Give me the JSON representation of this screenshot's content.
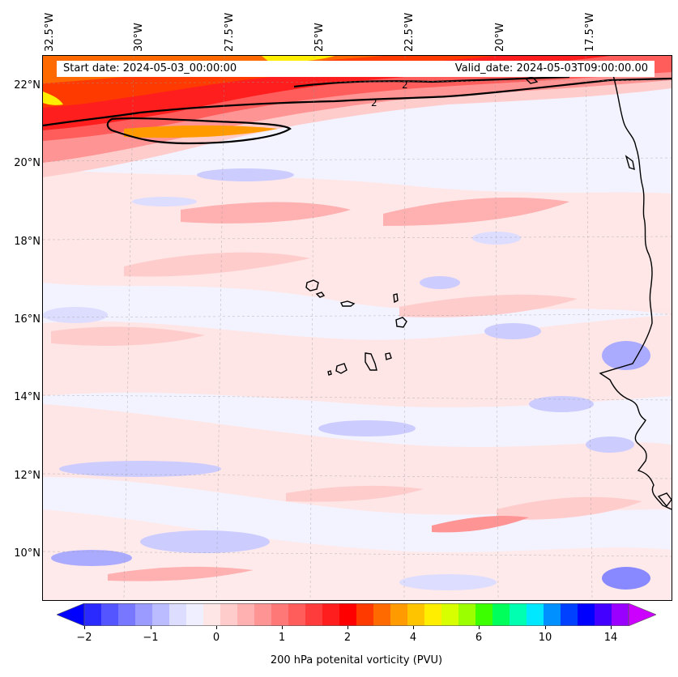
{
  "map": {
    "info_start": "Start date: 2024-05-03_00:00:00",
    "info_valid": "Valid_date: 2024-05-03T09:00:00.00",
    "contour_label": "2",
    "lon_labels": [
      "32.5°W",
      "30°W",
      "27.5°W",
      "25°W",
      "22.5°W",
      "20°W",
      "17.5°W"
    ],
    "lat_labels": [
      "22°N",
      "20°N",
      "18°N",
      "16°N",
      "14°N",
      "12°N",
      "10°N"
    ]
  },
  "colorbar": {
    "ticks": [
      "−2",
      "−1",
      "0",
      "1",
      "2",
      "4",
      "6",
      "10",
      "14"
    ],
    "label": "200 hPa potenital vorticity (PVU)",
    "colors": [
      "#0000ff",
      "#2a2aff",
      "#5555ff",
      "#7777ff",
      "#9a9aff",
      "#bbbbff",
      "#ddddff",
      "#efefff",
      "#ffe6e6",
      "#ffcccc",
      "#ffb0b0",
      "#ff9494",
      "#ff7878",
      "#ff5c5c",
      "#ff3c3c",
      "#ff1e1e",
      "#ff0000",
      "#ff3a00",
      "#ff6a00",
      "#ff9a00",
      "#ffc400",
      "#ffee00",
      "#d8ff00",
      "#9cff00",
      "#3cff00",
      "#00ff5a",
      "#00ffb0",
      "#00e8ff",
      "#0090ff",
      "#0040ff",
      "#0000ff",
      "#4400ff",
      "#9900ff",
      "#cc00ff"
    ]
  }
}
